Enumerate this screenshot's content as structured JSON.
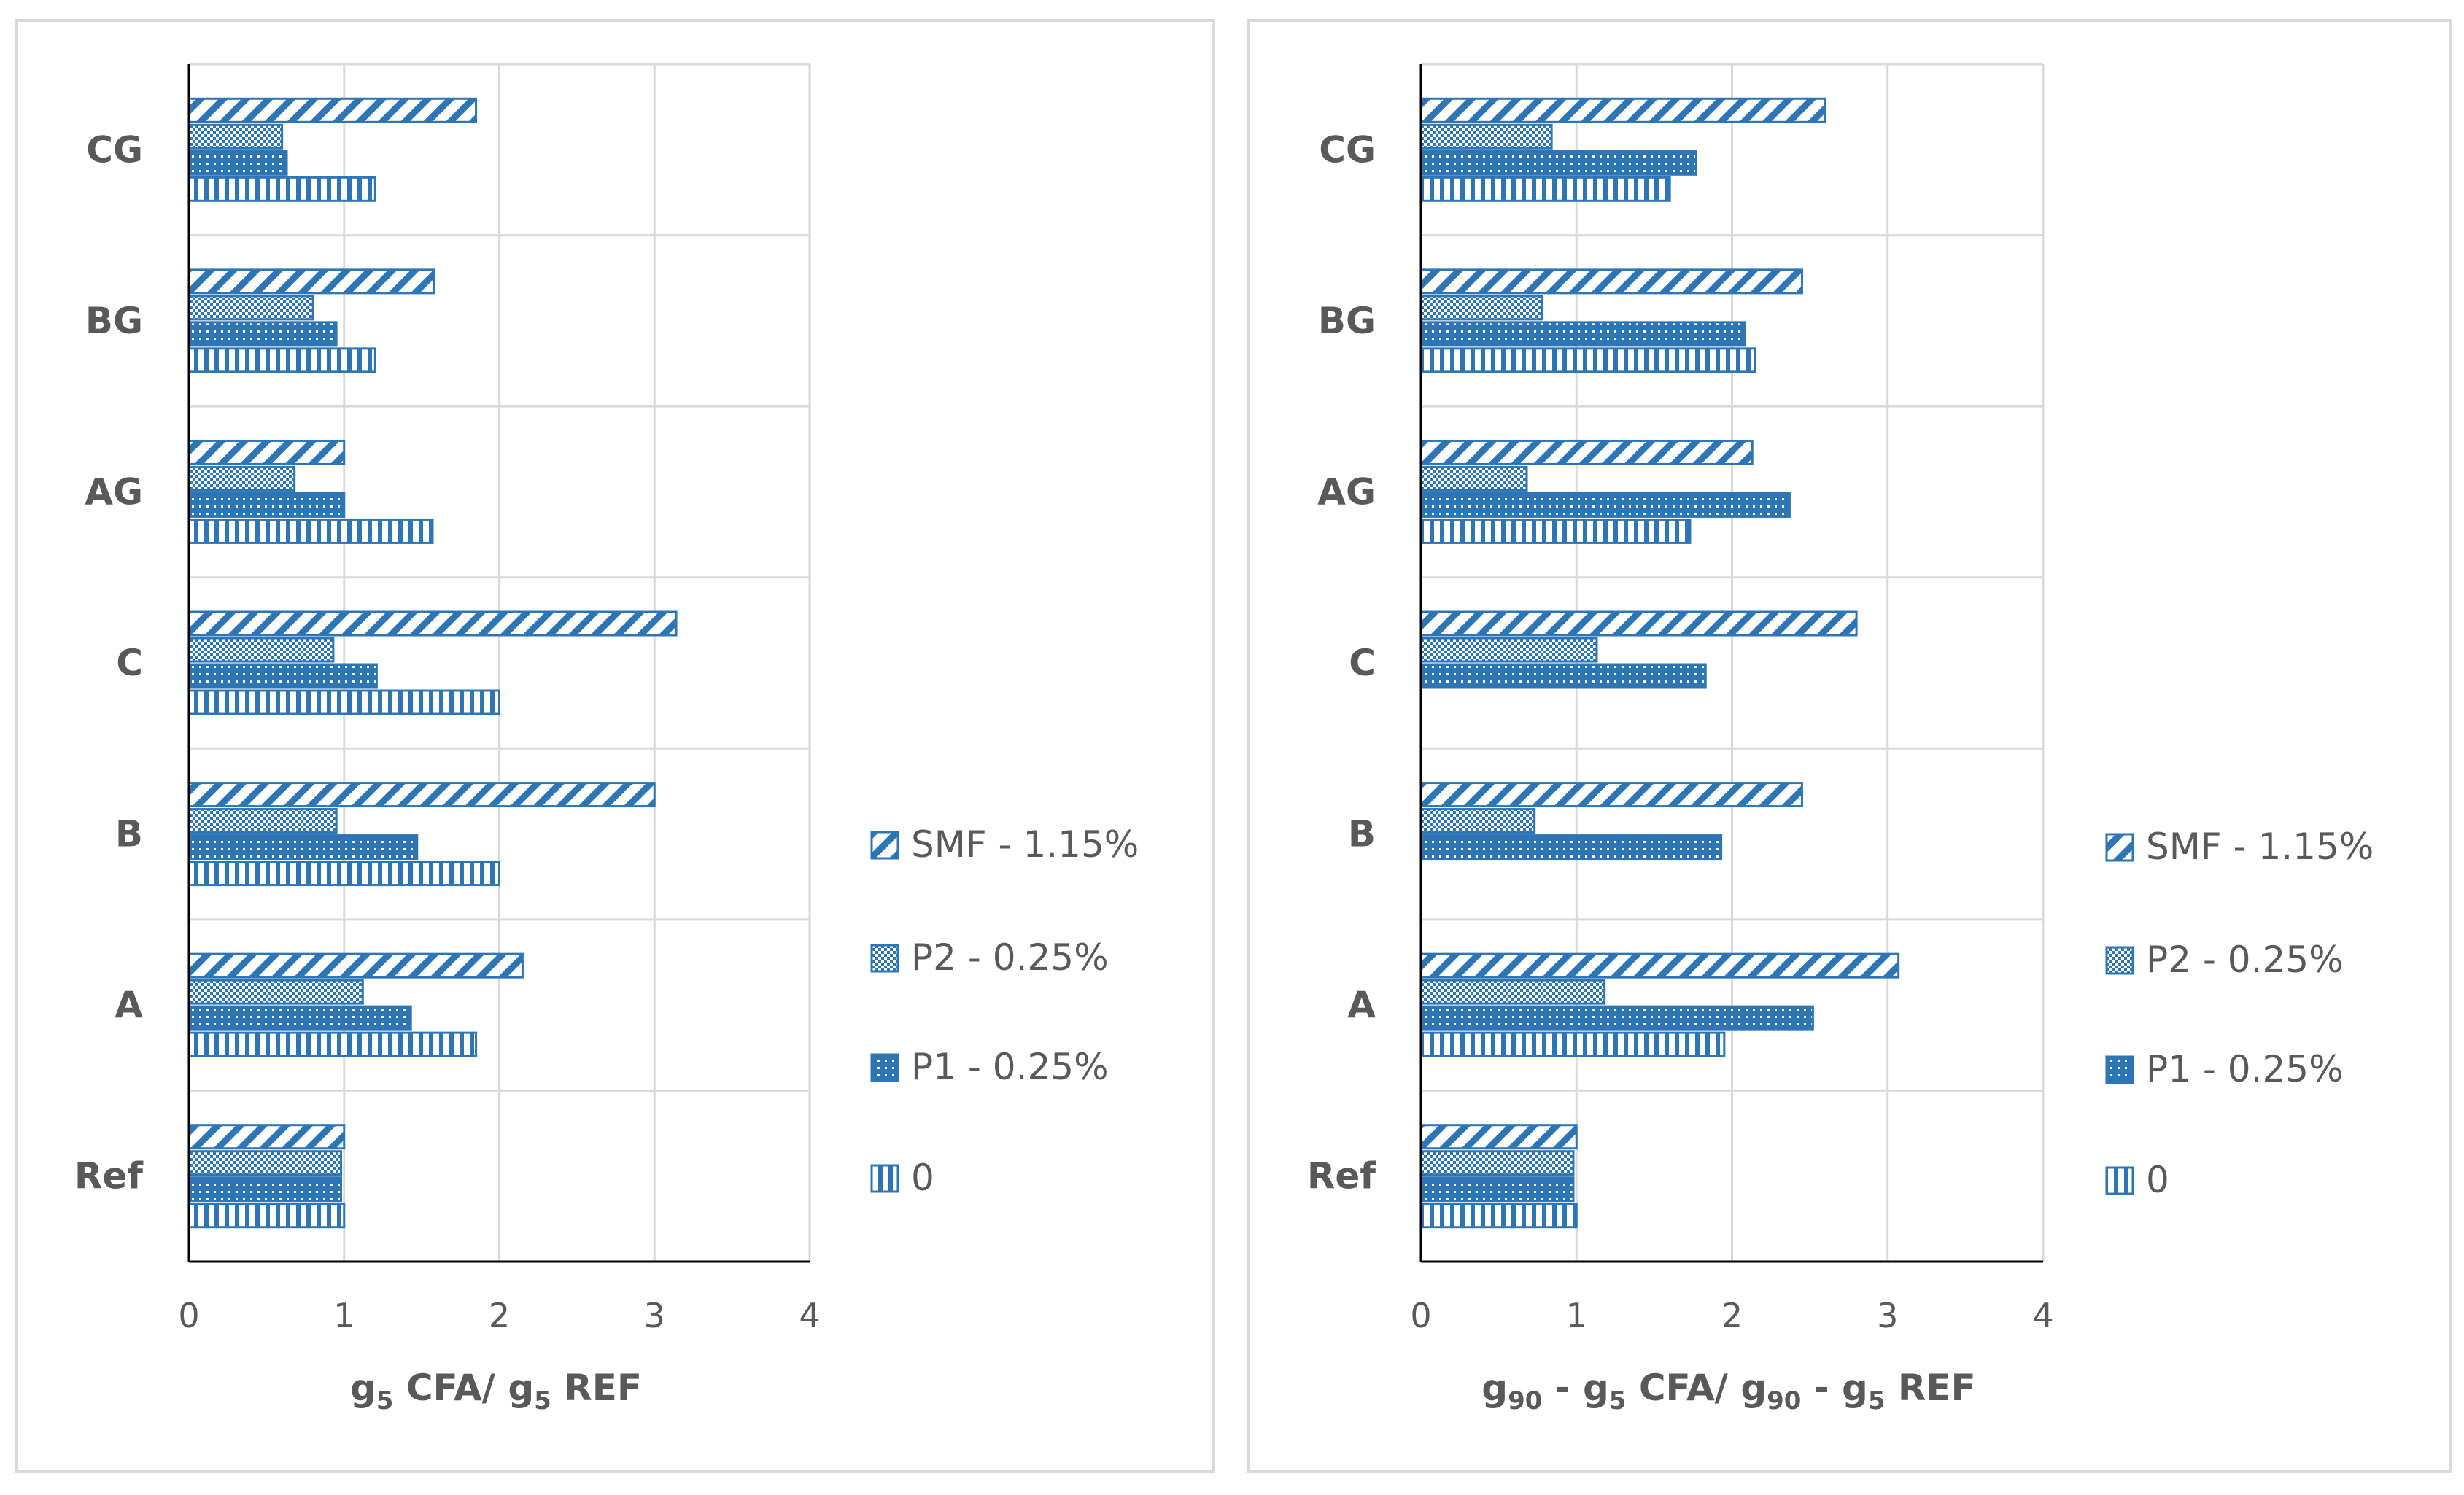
{
  "chart_data": [
    {
      "type": "bar",
      "orientation": "horizontal",
      "title": "",
      "xlabel": "g5 CFA/ g5 REF",
      "xlabel_parts": [
        {
          "t": "g",
          "sub": false
        },
        {
          "t": "5",
          "sub": true
        },
        {
          "t": " CFA/ g",
          "sub": false
        },
        {
          "t": "5",
          "sub": true
        },
        {
          "t": " REF",
          "sub": false
        }
      ],
      "ylabel": "",
      "xlim": [
        0,
        4
      ],
      "xticks": [
        "0",
        "1",
        "2",
        "3",
        "4"
      ],
      "grid": true,
      "legend_position": "right",
      "categories": [
        "Ref",
        "A",
        "B",
        "C",
        "AG",
        "BG",
        "CG"
      ],
      "series": [
        {
          "name": "0",
          "pattern": "vertical-lines",
          "values": [
            1.0,
            1.85,
            2.0,
            2.0,
            1.57,
            1.2,
            1.2
          ]
        },
        {
          "name": "P1 - 0.25%",
          "pattern": "dots",
          "values": [
            0.98,
            1.43,
            1.47,
            1.21,
            1.0,
            0.95,
            0.63
          ]
        },
        {
          "name": "P2 - 0.25%",
          "pattern": "checker",
          "values": [
            0.98,
            1.12,
            0.95,
            0.93,
            0.68,
            0.8,
            0.6
          ]
        },
        {
          "name": "SMF - 1.15%",
          "pattern": "diagonal",
          "values": [
            1.0,
            2.15,
            3.0,
            3.14,
            1.0,
            1.58,
            1.85
          ]
        }
      ]
    },
    {
      "type": "bar",
      "orientation": "horizontal",
      "title": "",
      "xlabel": "g90 - g5 CFA/ g90 - g5 REF",
      "xlabel_parts": [
        {
          "t": "g",
          "sub": false
        },
        {
          "t": "90",
          "sub": true
        },
        {
          "t": " - g",
          "sub": false
        },
        {
          "t": "5",
          "sub": true
        },
        {
          "t": " CFA/ g",
          "sub": false
        },
        {
          "t": "90",
          "sub": true
        },
        {
          "t": " - g",
          "sub": false
        },
        {
          "t": "5",
          "sub": true
        },
        {
          "t": " REF",
          "sub": false
        }
      ],
      "ylabel": "",
      "xlim": [
        0,
        4
      ],
      "xticks": [
        "0",
        "1",
        "2",
        "3",
        "4"
      ],
      "grid": true,
      "legend_position": "right",
      "categories": [
        "Ref",
        "A",
        "B",
        "C",
        "AG",
        "BG",
        "CG"
      ],
      "series": [
        {
          "name": "0",
          "pattern": "vertical-lines",
          "values": [
            1.0,
            1.95,
            0,
            0,
            1.73,
            2.15,
            1.6
          ]
        },
        {
          "name": "P1 - 0.25%",
          "pattern": "dots",
          "values": [
            0.98,
            2.52,
            1.93,
            1.83,
            2.37,
            2.08,
            1.77
          ]
        },
        {
          "name": "P2 - 0.25%",
          "pattern": "checker",
          "values": [
            0.98,
            1.18,
            0.73,
            1.13,
            0.68,
            0.78,
            0.84
          ]
        },
        {
          "name": "SMF - 1.15%",
          "pattern": "diagonal",
          "values": [
            1.0,
            3.07,
            2.45,
            2.8,
            2.13,
            2.45,
            2.6
          ]
        }
      ]
    }
  ],
  "colors": {
    "bar": "#2e75b6",
    "grid": "#d9d9d9",
    "axis": "#000000",
    "text": "#595959",
    "panel_border": "#d9d9d9"
  }
}
